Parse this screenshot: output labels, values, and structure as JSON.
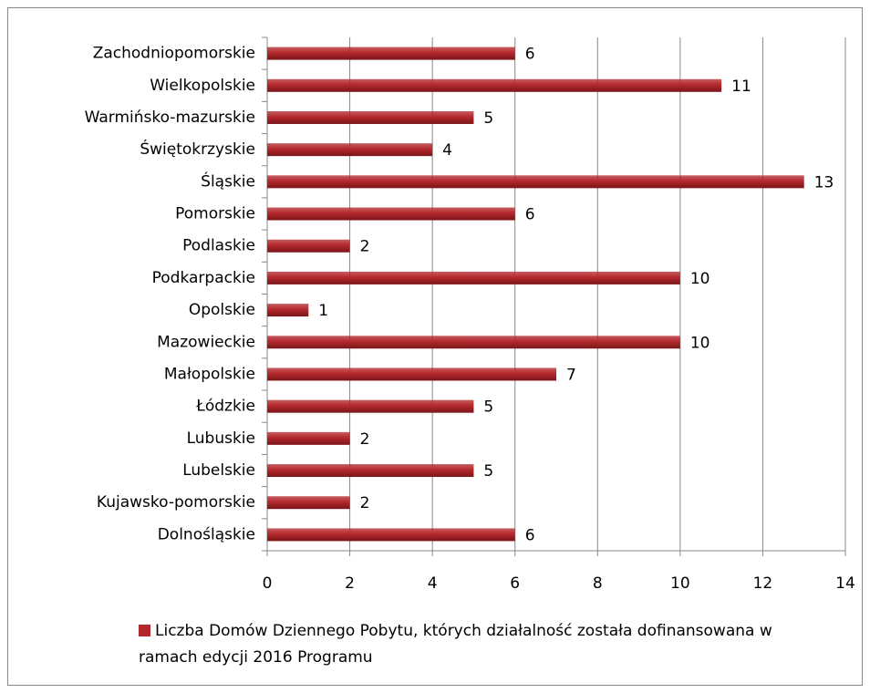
{
  "chart_data": {
    "type": "bar",
    "orientation": "horizontal",
    "categories": [
      "Zachodniopomorskie",
      "Wielkopolskie",
      "Warmińsko-mazurskie",
      "Świętokrzyskie",
      "Śląskie",
      "Pomorskie",
      "Podlaskie",
      "Podkarpackie",
      "Opolskie",
      "Mazowieckie",
      "Małopolskie",
      "Łódzkie",
      "Lubuskie",
      "Lubelskie",
      "Kujawsko-pomorskie",
      "Dolnośląskie"
    ],
    "series": [
      {
        "name": "Liczba Domów Dziennego Pobytu, których działalność została dofinansowana w ramach edycji 2016 Programu",
        "color": "#b3282d",
        "values": [
          6,
          11,
          5,
          4,
          13,
          6,
          2,
          10,
          1,
          10,
          7,
          5,
          2,
          5,
          2,
          6
        ]
      }
    ],
    "xlim": [
      0,
      14
    ],
    "xticks": [
      0,
      2,
      4,
      6,
      8,
      10,
      12,
      14
    ],
    "grid": true,
    "legend": "bottom"
  }
}
